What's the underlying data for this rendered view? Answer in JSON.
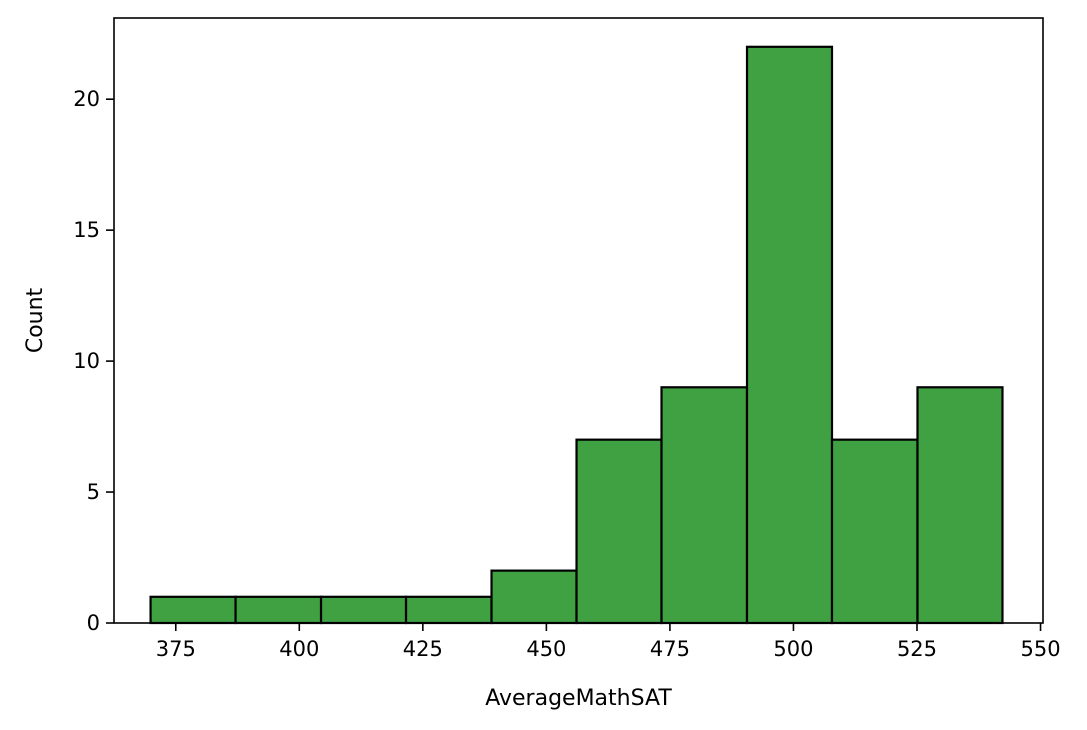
{
  "chart_data": {
    "type": "bar",
    "xlabel": "AverageMathSAT",
    "ylabel": "Count",
    "xlim": [
      362.5,
      550.5
    ],
    "ylim": [
      0,
      23.1
    ],
    "xticks": [
      375,
      400,
      425,
      450,
      475,
      500,
      525,
      550
    ],
    "yticks": [
      0,
      5,
      10,
      15,
      20
    ],
    "bin_edges": [
      369.9,
      387.1,
      404.4,
      421.6,
      438.9,
      456.1,
      473.3,
      490.6,
      507.8,
      525.1,
      542.3
    ],
    "values": [
      1,
      1,
      1,
      1,
      2,
      7,
      9,
      22,
      7,
      9
    ],
    "grid": false,
    "colors": {
      "bar_fill": "#3fa142",
      "bar_edge": "#000000"
    }
  }
}
